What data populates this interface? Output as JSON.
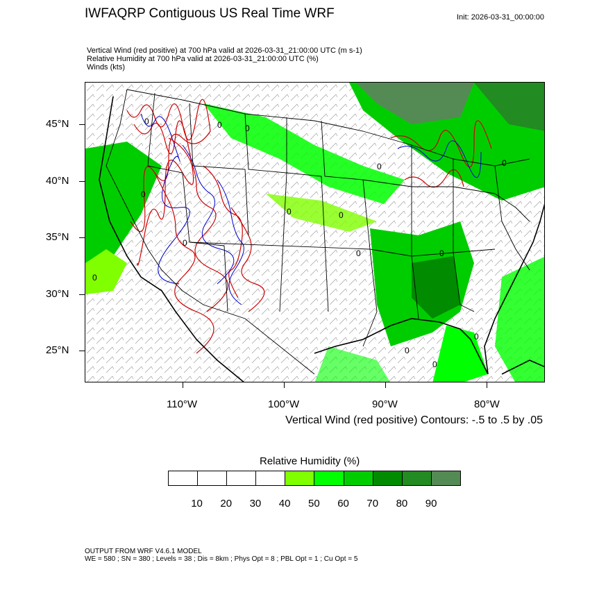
{
  "header": {
    "title": "IWFAQRP Contiguous US Real Time WRF",
    "init": "Init: 2026-03-31_00:00:00"
  },
  "subtitles": [
    "Vertical Wind (red positive) at 700 hPa valid at 2026-03-31_21:00:00 UTC   (m s-1)",
    "Relative Humidity at 700 hPa valid at 2026-03-31_21:00:00 UTC   (%)",
    "Winds   (kts)"
  ],
  "axes": {
    "lat_labels": [
      "45°N",
      "40°N",
      "35°N",
      "30°N",
      "25°N"
    ],
    "lon_labels": [
      "110°W",
      "100°W",
      "90°W",
      "80°W"
    ]
  },
  "contour_note": "Vertical Wind (red positive) Contours: -.5 to .5 by .05",
  "colorbar": {
    "title": "Relative Humidity  (%)",
    "labels": [
      "10",
      "20",
      "30",
      "40",
      "50",
      "60",
      "70",
      "80",
      "90"
    ],
    "colors": [
      "#ffffff",
      "#ffffff",
      "#ffffff",
      "#ffffff",
      "#7fff00",
      "#00ff00",
      "#00cd00",
      "#008b00",
      "#228b22",
      "#548b54"
    ]
  },
  "map_colors": {
    "rh_50": "#7fff00",
    "rh_60": "#00ff00",
    "rh_70": "#00cd00",
    "rh_80": "#008b00",
    "rh_90": "#548b54",
    "ascent": "#cc0000",
    "descent": "#0000cc"
  },
  "footer": [
    "OUTPUT FROM WRF V4.6.1 MODEL",
    "WE = 580 ; SN = 380 ; Levels = 38 ; Dis = 8km ; Phys Opt = 8 ; PBL Opt = 1 ; Cu Opt = 5"
  ]
}
